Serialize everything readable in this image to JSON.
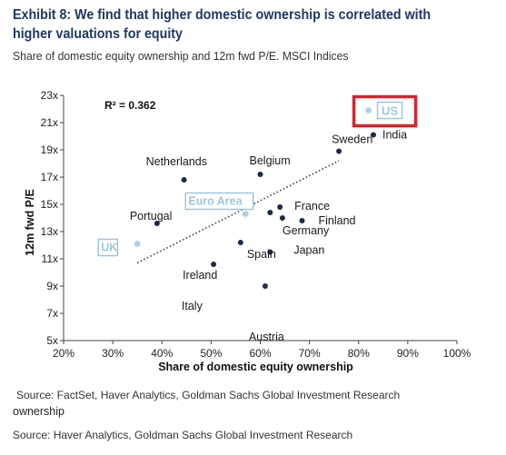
{
  "header": {
    "title": "Exhibit 8: We find that higher domestic ownership is correlated with higher valuations for equity",
    "subtitle": "Share of domestic equity ownership and 12m fwd P/E. MSCI Indices"
  },
  "footer": {
    "source_chart": "Source: FactSet, Haver Analytics, Goldman Sachs Global Investment Research",
    "overflow_text": "ownership",
    "source_page": "Source: Haver Analytics, Goldman Sachs Global Investment Research"
  },
  "chart_data": {
    "type": "scatter",
    "xlabel": "Share of domestic equity ownership",
    "ylabel": "12m fwd P/E",
    "xlim": [
      20,
      100
    ],
    "ylim": [
      5,
      23
    ],
    "x_ticks": [
      "20%",
      "30%",
      "40%",
      "50%",
      "60%",
      "70%",
      "80%",
      "90%",
      "100%"
    ],
    "y_ticks": [
      "5x",
      "7x",
      "9x",
      "11x",
      "13x",
      "15x",
      "17x",
      "19x",
      "21x",
      "23x"
    ],
    "x_tick_values": [
      20,
      30,
      40,
      50,
      60,
      70,
      80,
      90,
      100
    ],
    "y_tick_values": [
      5,
      7,
      9,
      11,
      13,
      15,
      17,
      19,
      21,
      23
    ],
    "annotation": "R² = 0.362",
    "trendline": {
      "x": [
        35,
        76
      ],
      "y": [
        10.7,
        18.2
      ]
    },
    "colors": {
      "point": "#1b2a4a",
      "highlight_point": "#a9d0ea",
      "highlight_label": "#9cc6e2",
      "trendline": "#1f3f75",
      "callout_box": "#d9232d",
      "axis": "#444444"
    },
    "points": [
      {
        "label": "US",
        "x": 82,
        "y": 21.9,
        "highlight": true,
        "boxed": true
      },
      {
        "label": "India",
        "x": 83,
        "y": 20.1,
        "highlight": false
      },
      {
        "label": "Sweden",
        "x": 76,
        "y": 18.9,
        "highlight": false
      },
      {
        "label": "Belgium",
        "x": 60,
        "y": 17.2,
        "highlight": false
      },
      {
        "label": "Netherlands",
        "x": 44.5,
        "y": 16.8,
        "highlight": false
      },
      {
        "label": "Euro Area",
        "x": 57,
        "y": 14.3,
        "highlight": true
      },
      {
        "label": "France",
        "x": 64,
        "y": 14.8,
        "highlight": false
      },
      {
        "label": "Portugal",
        "x": 39,
        "y": 13.6,
        "highlight": false
      },
      {
        "label": "Finland",
        "x": 68.5,
        "y": 13.8,
        "highlight": false
      },
      {
        "label": "Germany",
        "x": 64.5,
        "y": 14.0,
        "highlight": false
      },
      {
        "label": "",
        "x": 62,
        "y": 14.4,
        "highlight": false
      },
      {
        "label": "Japan",
        "x": 62,
        "y": 11.5,
        "highlight": false
      },
      {
        "label": "Spain",
        "x": 56,
        "y": 12.2,
        "highlight": false
      },
      {
        "label": "Ireland",
        "x": 50.5,
        "y": 10.6,
        "highlight": false
      },
      {
        "label": "UK",
        "x": 35,
        "y": 12.1,
        "highlight": true
      },
      {
        "label": "Italy",
        "x": 61,
        "y": 9.0,
        "highlight": false
      },
      {
        "label": "Austria",
        "x": 61,
        "y": 9.0,
        "highlight": false,
        "hidden_marker": true
      }
    ]
  }
}
